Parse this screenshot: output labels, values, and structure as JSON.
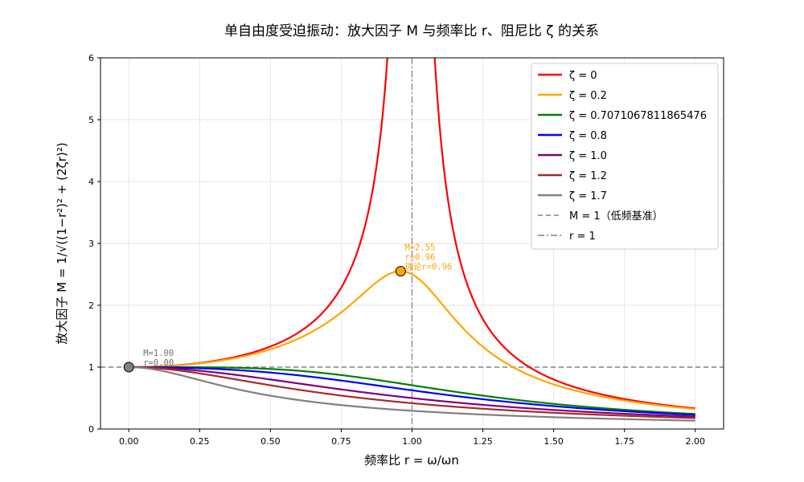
{
  "chart_data": {
    "type": "line",
    "title": "单自由度受迫振动：放大因子 M 与频率比 r、阻尼比 ζ 的关系",
    "xlabel": "频率比 r = ω/ωn",
    "ylabel": "放大因子 M = 1/√((1−r²)² + (2ζr)²)",
    "xlim": [
      -0.1,
      2.1
    ],
    "ylim": [
      0,
      6
    ],
    "x_ticks": [
      "0.00",
      "0.25",
      "0.50",
      "0.75",
      "1.00",
      "1.25",
      "1.50",
      "1.75",
      "2.00"
    ],
    "y_ticks": [
      "0",
      "1",
      "2",
      "3",
      "4",
      "5",
      "6"
    ],
    "grid": true,
    "legend_position": "top-right",
    "x_range": [
      0,
      2
    ],
    "series": [
      {
        "name": "ζ = 0",
        "zeta": 0,
        "color": "#ff0000"
      },
      {
        "name": "ζ = 0.2",
        "zeta": 0.2,
        "color": "#ffa500"
      },
      {
        "name": "ζ = 0.7071067811865476",
        "zeta": 0.7071067811865476,
        "color": "#008000"
      },
      {
        "name": "ζ = 0.8",
        "zeta": 0.8,
        "color": "#0000ff"
      },
      {
        "name": "ζ = 1.0",
        "zeta": 1.0,
        "color": "#800080"
      },
      {
        "name": "ζ = 1.2",
        "zeta": 1.2,
        "color": "#a52a2a"
      },
      {
        "name": "ζ = 1.7",
        "zeta": 1.7,
        "color": "#808080"
      }
    ],
    "reference_lines": [
      {
        "name": "M = 1（低频基准）",
        "orientation": "horizontal",
        "value": 1,
        "color": "#808080",
        "style": "dashed"
      },
      {
        "name": "r = 1",
        "orientation": "vertical",
        "value": 1,
        "color": "#808080",
        "style": "dashdot"
      }
    ],
    "annotations": [
      {
        "x": 0.96,
        "y": 2.55,
        "color": "#ffa500",
        "lines": [
          "M=2.55",
          "r=0.96",
          "理论r=0.96"
        ]
      },
      {
        "x": 0.0,
        "y": 1.0,
        "color": "#7a6a7a",
        "lines": [
          "M=1.00",
          "r=0.00"
        ]
      }
    ]
  }
}
